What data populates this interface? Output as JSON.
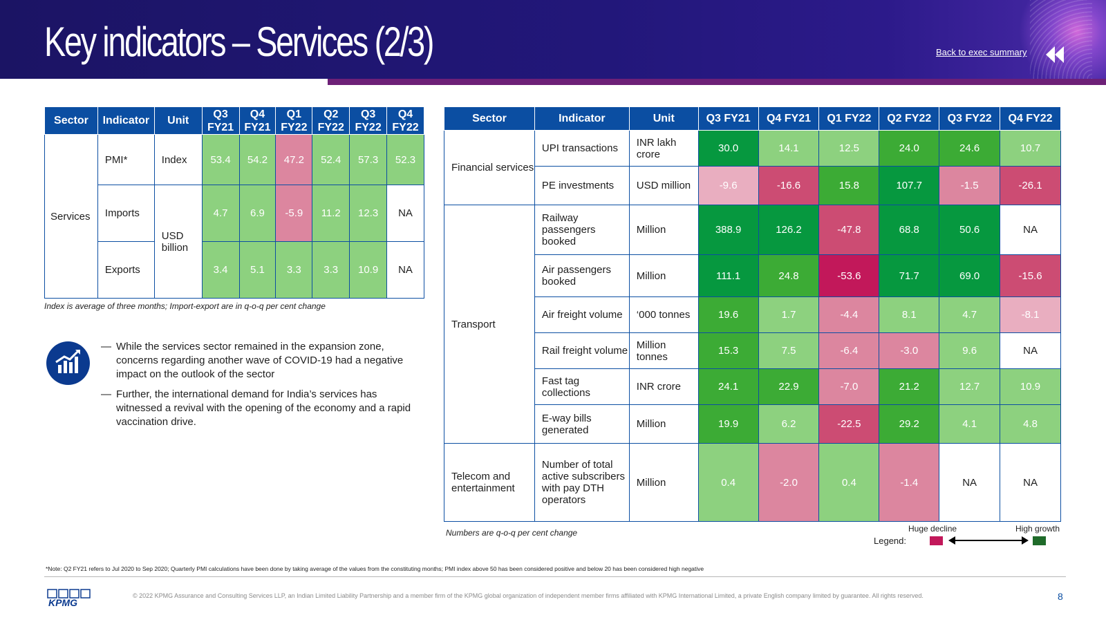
{
  "header": {
    "title": "Key indicators – Services (2/3)",
    "back_link": "Back to exec summary"
  },
  "left_table": {
    "headers": [
      "Sector",
      "Indicator",
      "Unit",
      "Q3 FY21",
      "Q4 FY21",
      "Q1 FY22",
      "Q2 FY22",
      "Q3 FY22",
      "Q4 FY22"
    ],
    "sector": "Services",
    "rows": [
      {
        "indicator": "PMI*",
        "unit": "Index",
        "values": [
          "53.4",
          "54.2",
          "47.2",
          "52.4",
          "57.3",
          "52.3"
        ]
      },
      {
        "indicator": "Imports",
        "unit": "USD billion",
        "values": [
          "4.7",
          "6.9",
          "-5.9",
          "11.2",
          "12.3",
          "NA"
        ]
      },
      {
        "indicator": "Exports",
        "unit": "",
        "values": [
          "3.4",
          "5.1",
          "3.3",
          "3.3",
          "10.9",
          "NA"
        ]
      }
    ],
    "note": "Index is average of three months; Import-export are in q-o-q per cent change"
  },
  "insights": [
    "While the services sector remained in the expansion zone, concerns regarding another wave of COVID-19 had a negative impact on the outlook of the sector",
    "Further, the international demand for India’s services has witnessed a revival with the opening of the economy and a rapid vaccination drive."
  ],
  "right_table": {
    "headers": [
      "Sector",
      "Indicator",
      "Unit",
      "Q3 FY21",
      "Q4 FY21",
      "Q1 FY22",
      "Q2 FY22",
      "Q3 FY22",
      "Q4 FY22"
    ],
    "sectors": {
      "financial": "Financial services",
      "transport": "Transport",
      "telecom": "Telecom and entertainment"
    },
    "rows": [
      {
        "indicator": "UPI transactions",
        "unit": "INR lakh crore",
        "values": [
          "30.0",
          "14.1",
          "12.5",
          "24.0",
          "24.6",
          "10.7"
        ]
      },
      {
        "indicator": "PE investments",
        "unit": "USD million",
        "values": [
          "-9.6",
          "-16.6",
          "15.8",
          "107.7",
          "-1.5",
          "-26.1"
        ]
      },
      {
        "indicator": "Railway passengers booked",
        "unit": "Million",
        "values": [
          "388.9",
          "126.2",
          "-47.8",
          "68.8",
          "50.6",
          "NA"
        ]
      },
      {
        "indicator": "Air passengers booked",
        "unit": "Million",
        "values": [
          "111.1",
          "24.8",
          "-53.6",
          "71.7",
          "69.0",
          "-15.6"
        ]
      },
      {
        "indicator": "Air freight volume",
        "unit": "‘000 tonnes",
        "values": [
          "19.6",
          "1.7",
          "-4.4",
          "8.1",
          "4.7",
          "-8.1"
        ]
      },
      {
        "indicator": "Rail freight volume",
        "unit": "Million tonnes",
        "values": [
          "15.3",
          "7.5",
          "-6.4",
          "-3.0",
          "9.6",
          "NA"
        ]
      },
      {
        "indicator": "Fast tag collections",
        "unit": "INR crore",
        "values": [
          "24.1",
          "22.9",
          "-7.0",
          "21.2",
          "12.7",
          "10.9"
        ]
      },
      {
        "indicator": "E-way bills generated",
        "unit": "Million",
        "values": [
          "19.9",
          "6.2",
          "-22.5",
          "29.2",
          "4.1",
          "4.8"
        ]
      },
      {
        "indicator": "Number of total active subscribers with pay DTH operators",
        "unit": "Million",
        "values": [
          "0.4",
          "-2.0",
          "0.4",
          "-1.4",
          "NA",
          "NA"
        ]
      }
    ],
    "note": "Numbers are q-o-q per cent change"
  },
  "legend": {
    "label": "Legend:",
    "low": "Huge decline",
    "high": "High growth",
    "low_color": "#c2185a",
    "high_color": "#1f6b2a"
  },
  "footnote": "*Note: Q2 FY21 refers to Jul 2020 to Sep 2020; Quarterly PMI calculations have been done by taking average of the values from the constituting months; PMI index above 50 has been considered positive and below 20 has been considered high negative",
  "footer": {
    "copyright": "© 2022 KPMG Assurance and Consulting Services LLP, an Indian Limited Liability Partnership and a member firm of the KPMG global organization of independent member firms affiliated with KPMG International Limited, a private English company limited by guarantee. All rights reserved.",
    "page_number": "8",
    "logo": "KPMG"
  },
  "colors": {
    "header_bg": "#1b1464",
    "table_header": "#0b4ea2",
    "accent_bar": "#6d2077"
  }
}
